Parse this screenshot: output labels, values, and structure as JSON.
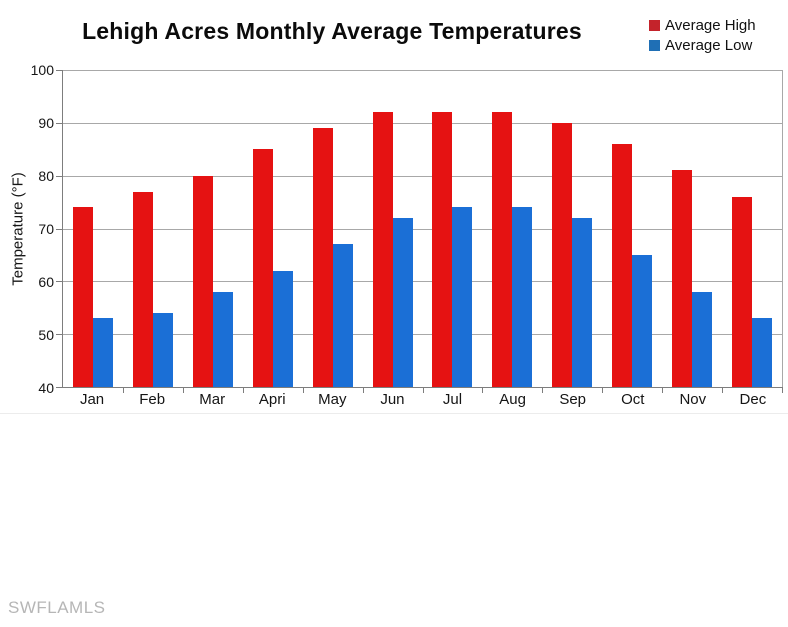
{
  "title": "Lehigh Acres Monthly Average Temperatures",
  "watermark": "SWFLAMLS",
  "legend": [
    {
      "label": "Average High",
      "color": "#c4232b"
    },
    {
      "label": "Average Low",
      "color": "#1f6fb5"
    }
  ],
  "chart_data": {
    "type": "bar",
    "title": "Lehigh Acres Monthly Average Temperatures",
    "categories": [
      "Jan",
      "Feb",
      "Mar",
      "Apri",
      "May",
      "Jun",
      "Jul",
      "Aug",
      "Sep",
      "Oct",
      "Nov",
      "Dec"
    ],
    "series": [
      {
        "name": "Average High",
        "color": "#e51212",
        "values": [
          74,
          77,
          80,
          85,
          89,
          92,
          92,
          92,
          90,
          86,
          81,
          76
        ]
      },
      {
        "name": "Average Low",
        "color": "#1b6fd6",
        "values": [
          53,
          54,
          58,
          62,
          67,
          72,
          74,
          74,
          72,
          65,
          58,
          53
        ]
      }
    ],
    "xlabel": "",
    "ylabel": "Temperature (°F)",
    "ylim": [
      40,
      100
    ],
    "yticks": [
      100,
      90,
      80,
      70,
      60,
      50,
      40
    ],
    "grid": true,
    "legend_position": "top-right",
    "colors": {
      "grid": "#a8a8a8",
      "axis": "#7d7d7d"
    }
  }
}
